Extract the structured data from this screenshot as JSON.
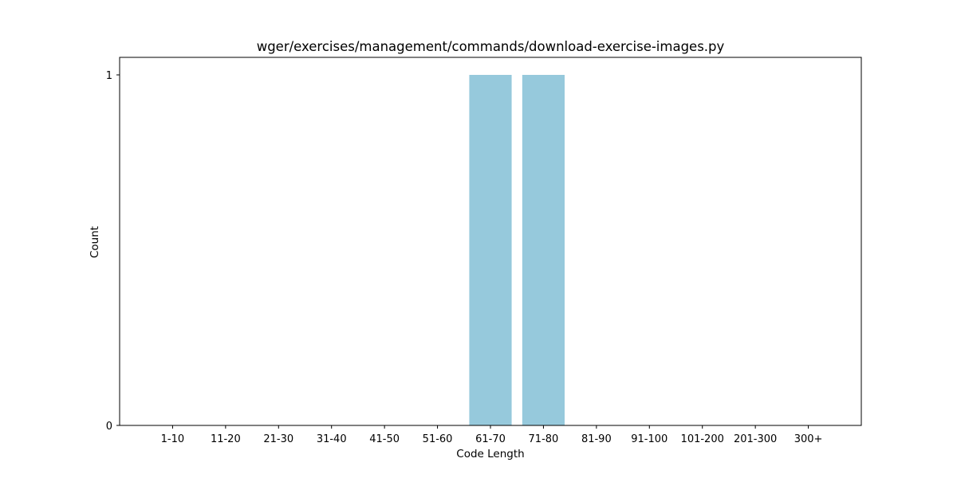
{
  "chart_data": {
    "type": "bar",
    "title": "wger/exercises/management/commands/download-exercise-images.py",
    "xlabel": "Code Length",
    "ylabel": "Count",
    "categories": [
      "1-10",
      "11-20",
      "21-30",
      "31-40",
      "41-50",
      "51-60",
      "61-70",
      "71-80",
      "81-90",
      "91-100",
      "101-200",
      "201-300",
      "300+"
    ],
    "values": [
      0,
      0,
      0,
      0,
      0,
      0,
      1,
      1,
      0,
      0,
      0,
      0,
      0
    ],
    "ylim": [
      0,
      1.05
    ],
    "yticks": [
      0,
      1
    ],
    "grid": false,
    "legend": "none",
    "bar_color": "#96c9dc"
  }
}
